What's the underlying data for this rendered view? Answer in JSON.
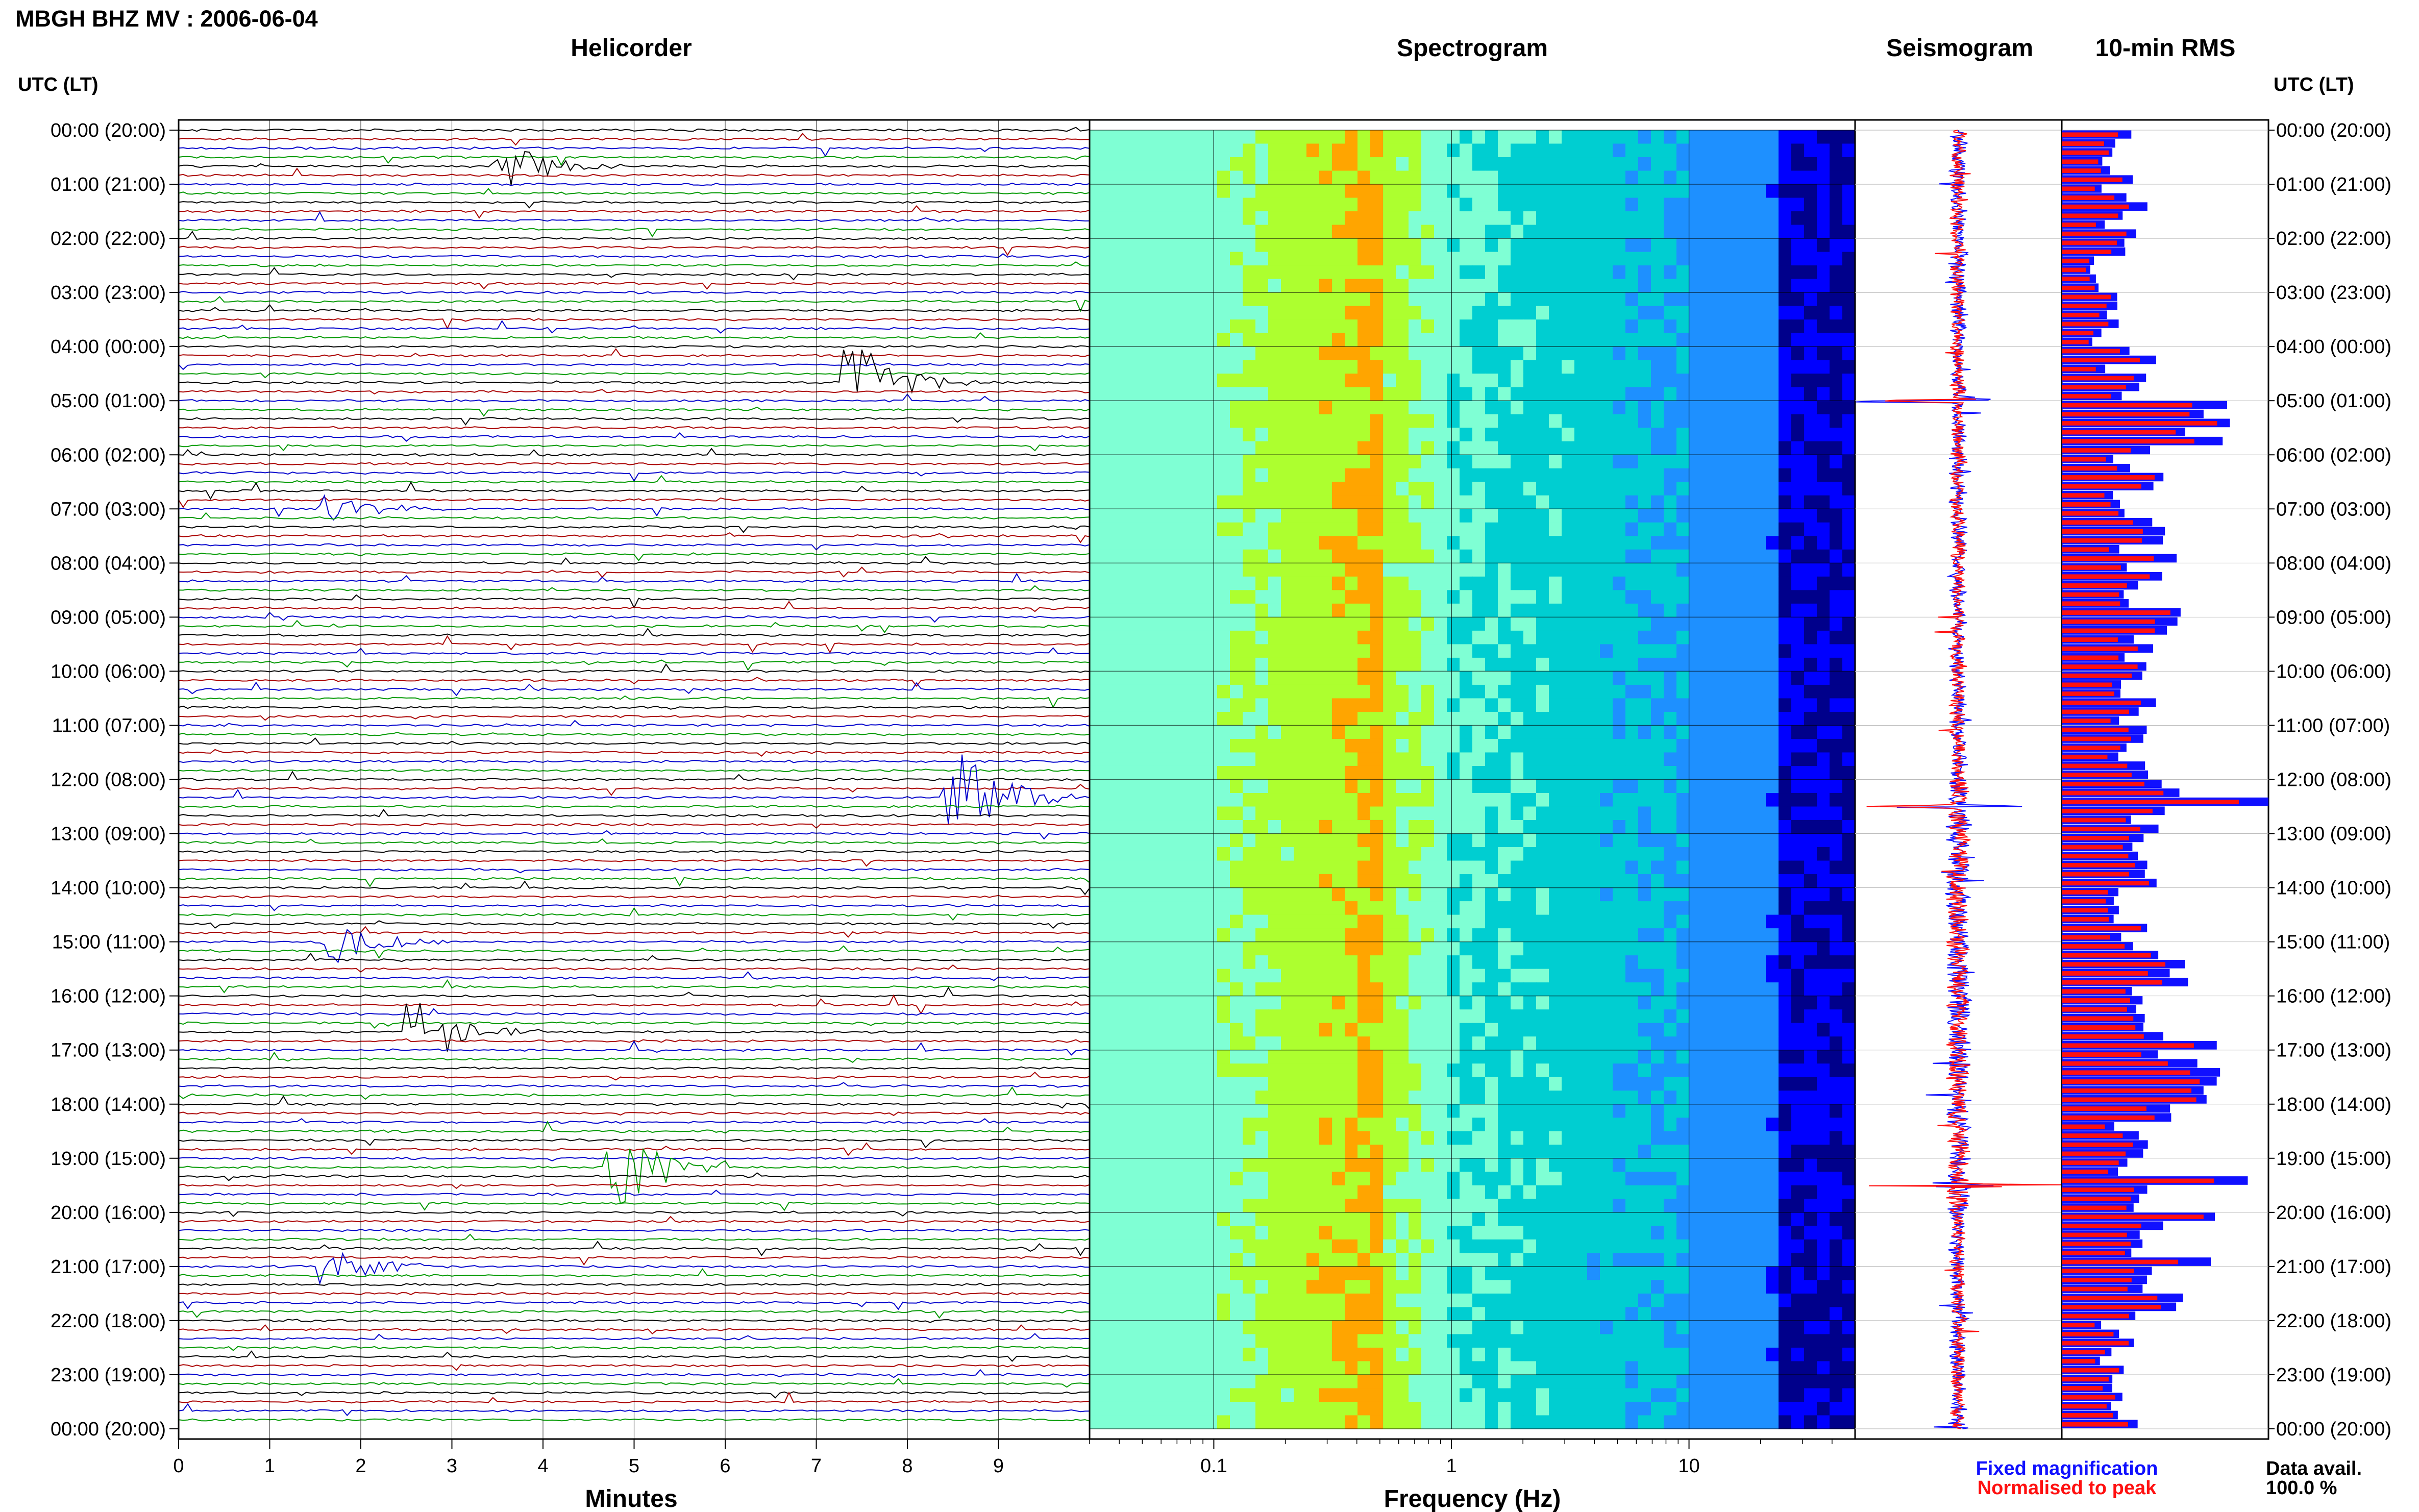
{
  "header": {
    "title": "MBGH BHZ MV : 2006-06-04"
  },
  "time_axis": {
    "label": "UTC (LT)",
    "ticks": [
      "00:00 (20:00)",
      "01:00 (21:00)",
      "02:00 (22:00)",
      "03:00 (23:00)",
      "04:00 (00:00)",
      "05:00 (01:00)",
      "06:00 (02:00)",
      "07:00 (03:00)",
      "08:00 (04:00)",
      "09:00 (05:00)",
      "10:00 (06:00)",
      "11:00 (07:00)",
      "12:00 (08:00)",
      "13:00 (09:00)",
      "14:00 (10:00)",
      "15:00 (11:00)",
      "16:00 (12:00)",
      "17:00 (13:00)",
      "18:00 (14:00)",
      "19:00 (15:00)",
      "20:00 (16:00)",
      "21:00 (17:00)",
      "22:00 (18:00)",
      "23:00 (19:00)",
      "00:00 (20:00)"
    ]
  },
  "panels": {
    "helicorder": "Helicorder",
    "spectrogram": "Spectrogram",
    "seismogram": "Seismogram",
    "rms": "10-min RMS"
  },
  "legend": {
    "fixed": "Fixed magnification",
    "normalised": "Normalised to peak",
    "fixed_color": "#1010ff",
    "normalised_color": "#ff1010",
    "avail_label": "Data avail.",
    "avail_value": "100.0 %"
  },
  "chart_data": [
    {
      "type": "line",
      "title": "Helicorder",
      "xlabel": "Minutes",
      "x_ticks": [
        "0",
        "1",
        "2",
        "3",
        "4",
        "5",
        "6",
        "7",
        "8",
        "9"
      ],
      "xlim": [
        0,
        10
      ],
      "trace_colors": [
        "#000000",
        "#aa0000",
        "#0000cc",
        "#009900"
      ],
      "events": [
        {
          "hour": 0.7,
          "minute": 3.7,
          "amp": 0.9
        },
        {
          "hour": 4.6,
          "minute": 7.6,
          "amp": 1.4
        },
        {
          "hour": 7.0,
          "minute": 1.8,
          "amp": 0.7
        },
        {
          "hour": 12.3,
          "minute": 8.7,
          "amp": 2.0
        },
        {
          "hour": 15.0,
          "minute": 1.8,
          "amp": 0.9
        },
        {
          "hour": 16.6,
          "minute": 2.8,
          "amp": 1.3
        },
        {
          "hour": 19.2,
          "minute": 5.0,
          "amp": 1.7
        },
        {
          "hour": 21.0,
          "minute": 1.8,
          "amp": 0.8
        }
      ]
    },
    {
      "type": "heatmap",
      "title": "Spectrogram",
      "xlabel": "Frequency (Hz)",
      "x_scale": "log",
      "x_ticks": [
        "0.1",
        "1",
        "10"
      ],
      "xlim": [
        0.03,
        50
      ],
      "colormap": [
        "#00008b",
        "#0000ff",
        "#1e90ff",
        "#00ced1",
        "#7fffd4",
        "#adff2f",
        "#ffa500"
      ]
    },
    {
      "type": "line",
      "title": "Seismogram",
      "spikes_hours": [
        5.0,
        12.5,
        19.5
      ]
    },
    {
      "type": "bar",
      "title": "10-min RMS",
      "series": [
        {
          "name": "Fixed magnification",
          "color": "#1010ff"
        },
        {
          "name": "Normalised to peak",
          "color": "#ff1010"
        }
      ],
      "rms_hourly": [
        0.25,
        0.3,
        0.22,
        0.2,
        0.35,
        0.6,
        0.4,
        0.45,
        0.42,
        0.5,
        0.35,
        0.3,
        0.45,
        0.35,
        0.3,
        0.5,
        0.4,
        0.55,
        0.4,
        0.3,
        0.55,
        0.5,
        0.25,
        0.28,
        0.25
      ],
      "peaks": [
        {
          "hour": 12.4,
          "value": 1.0
        },
        {
          "hour": 19.4,
          "value": 0.9
        },
        {
          "hour": 5.0,
          "value": 0.8
        },
        {
          "hour": 16.8,
          "value": 0.75
        }
      ]
    }
  ]
}
